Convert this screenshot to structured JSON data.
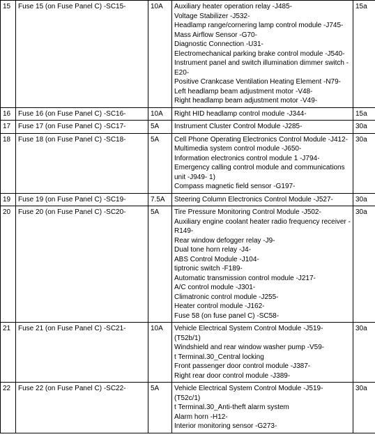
{
  "columns": {
    "widths": [
      "22px",
      "190px",
      "34px",
      "260px",
      "32px"
    ]
  },
  "rows": [
    {
      "num": "15",
      "desc": "Fuse 15 (on Fuse Panel C) -SC15-",
      "amp": "10A",
      "details": [
        "Auxiliary heater operation relay -J485-",
        "Voltage Stabilizer -J532-",
        "Headlamp range/cornering lamp control module -J745-",
        "Mass Airflow Sensor -G70-",
        "Diagnostic Connection -U31-",
        "Electromechanical parking brake control module -J540-",
        "Instrument panel and switch illumination dimmer switch -E20-",
        "Positive Crankcase Ventilation Heating Element -N79-",
        "Left headlamp beam adjustment motor -V48-",
        "Right headlamp beam adjustment motor -V49-"
      ],
      "ref": "15a"
    },
    {
      "num": "16",
      "desc": "Fuse 16 (on Fuse Panel C) -SC16-",
      "amp": "10A",
      "details": [
        "Right HID headlamp control module -J344-"
      ],
      "ref": "15a"
    },
    {
      "num": "17",
      "desc": "Fuse 17 (on Fuse Panel C) -SC17-",
      "amp": "5A",
      "details": [
        "Instrument Cluster Control Module -J285-"
      ],
      "ref": "30a"
    },
    {
      "num": "18",
      "desc": "Fuse 18 (on Fuse Panel C) -SC18-",
      "amp": "5A",
      "details": [
        "Cell Phone Operating Electronics Control Module -J412-",
        "Multimedia system control module -J650-",
        "Information electronics control module 1 -J794-",
        "Emergency calling control module and communications unit -J949- 1)",
        "Compass magnetic field sensor -G197-"
      ],
      "ref": "30a"
    },
    {
      "num": "19",
      "desc": "Fuse 19 (on Fuse Panel C) -SC19-",
      "amp": "7.5A",
      "details": [
        "Steering Column Electronics Control Module -J527-"
      ],
      "ref": "30a"
    },
    {
      "num": "20",
      "desc": "Fuse 20 (on Fuse Panel C) -SC20-",
      "amp": "5A",
      "details": [
        "Tire Pressure Monitoring Control Module -J502-",
        "Auxiliary engine coolant heater radio frequency receiver -R149-",
        "Rear window defogger relay -J9-",
        "Dual tone horn relay -J4-",
        "ABS Control Module -J104-",
        "tiptronic switch -F189-",
        "Automatic transmission control module -J217-",
        "A/C control module -J301-",
        "Climatronic control module -J255-",
        "Heater control module -J162-",
        "Fuse 58 (on fuse panel C) -SC58-"
      ],
      "ref": "30a"
    },
    {
      "num": "21",
      "desc": "Fuse 21 (on Fuse Panel C) -SC21-",
      "amp": "10A",
      "details": [
        "Vehicle Electrical System Control Module -J519- (T52b/1)",
        "Windshield and rear window washer pump -V59-",
        " t  Terminal.30_Central locking",
        "Front passenger door control module -J387-",
        "Right rear door control module -J389-"
      ],
      "ref": "30a"
    },
    {
      "num": "22",
      "desc": "Fuse 22 (on Fuse Panel C) -SC22-",
      "amp": "5A",
      "details": [
        "Vehicle Electrical System Control Module -J519- (T52c/1)",
        " t  Terminal.30_Anti-theft alarm system",
        "Alarm horn -H12-",
        "Interior monitoring sensor -G273-"
      ],
      "ref": "30a"
    }
  ]
}
